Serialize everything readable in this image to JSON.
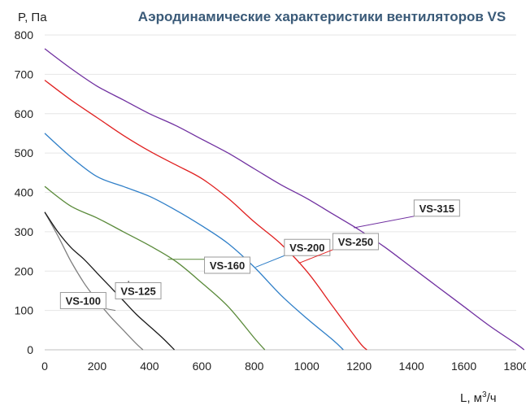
{
  "chart_data": {
    "type": "line",
    "title": "Аэродинамические характеристики вентиляторов VS",
    "ylabel": "P, Па",
    "xlabel_main": "L, м",
    "xlabel_sup": "3",
    "xlabel_tail": "/ч",
    "xlim": [
      0,
      1800
    ],
    "ylim": [
      0,
      800
    ],
    "x_ticks": [
      "0",
      "200",
      "400",
      "600",
      "800",
      "1000",
      "1200",
      "1400",
      "1600",
      "1800"
    ],
    "y_ticks": [
      "0",
      "100",
      "200",
      "300",
      "400",
      "500",
      "600",
      "700",
      "800"
    ],
    "grid": "horizontal",
    "series": [
      {
        "name": "VS-100",
        "color": "#7f7f7f",
        "x": [
          0,
          50,
          100,
          150,
          200,
          250,
          300,
          350,
          375
        ],
        "y": [
          350,
          290,
          225,
          170,
          125,
          85,
          50,
          15,
          0
        ]
      },
      {
        "name": "VS-125",
        "color": "#1a1a1a",
        "x": [
          0,
          50,
          100,
          150,
          200,
          250,
          300,
          350,
          400,
          450,
          495
        ],
        "y": [
          350,
          300,
          260,
          230,
          195,
          160,
          125,
          90,
          60,
          30,
          0
        ]
      },
      {
        "name": "VS-160",
        "color": "#5a8a3a",
        "x": [
          0,
          100,
          200,
          300,
          400,
          500,
          600,
          700,
          800,
          840
        ],
        "y": [
          415,
          365,
          335,
          300,
          265,
          225,
          170,
          110,
          30,
          0
        ]
      },
      {
        "name": "VS-200",
        "color": "#2f7fc8",
        "x": [
          0,
          100,
          200,
          300,
          400,
          500,
          600,
          700,
          800,
          900,
          1000,
          1100,
          1140
        ],
        "y": [
          550,
          490,
          440,
          415,
          390,
          355,
          315,
          270,
          210,
          140,
          80,
          25,
          0
        ]
      },
      {
        "name": "VS-250",
        "color": "#e02020",
        "x": [
          0,
          100,
          200,
          300,
          400,
          500,
          600,
          700,
          800,
          900,
          1000,
          1100,
          1200,
          1230
        ],
        "y": [
          685,
          635,
          590,
          545,
          505,
          470,
          435,
          385,
          325,
          270,
          200,
          110,
          20,
          0
        ]
      },
      {
        "name": "VS-315",
        "color": "#7030a0",
        "x": [
          0,
          100,
          200,
          300,
          400,
          500,
          600,
          700,
          800,
          900,
          1000,
          1100,
          1200,
          1300,
          1400,
          1500,
          1600,
          1700,
          1800,
          1830
        ],
        "y": [
          765,
          715,
          670,
          635,
          600,
          570,
          535,
          500,
          460,
          420,
          385,
          345,
          305,
          260,
          210,
          160,
          110,
          60,
          15,
          0
        ]
      }
    ],
    "annotations": [
      {
        "series": "VS-100",
        "text": "VS-100",
        "box": [
          60,
          125
        ],
        "point": [
          270,
          100
        ]
      },
      {
        "series": "VS-125",
        "text": "VS-125",
        "box": [
          270,
          150
        ],
        "point": [
          320,
          175
        ]
      },
      {
        "series": "VS-160",
        "text": "VS-160",
        "box": [
          610,
          215
        ],
        "point": [
          470,
          230
        ]
      },
      {
        "series": "VS-200",
        "text": "VS-200",
        "box": [
          915,
          260
        ],
        "point": [
          805,
          210
        ]
      },
      {
        "series": "VS-250",
        "text": "VS-250",
        "box": [
          1100,
          275
        ],
        "point": [
          970,
          220
        ]
      },
      {
        "series": "VS-315",
        "text": "VS-315",
        "box": [
          1410,
          360
        ],
        "point": [
          1180,
          310
        ]
      }
    ]
  }
}
